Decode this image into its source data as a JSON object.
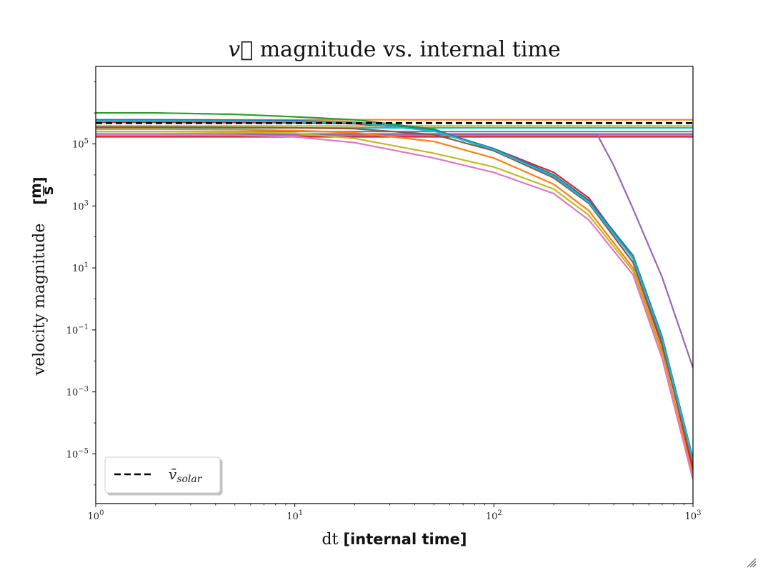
{
  "chart_data": {
    "type": "line",
    "title": "v⃗ magnitude vs. internal time",
    "title_parts": {
      "vec": "v⃗",
      "rest": " magnitude vs. internal time"
    },
    "xlabel": "dt [internal time]",
    "xlabel_parts": {
      "plain": "dt ",
      "bold": "[internal time]"
    },
    "ylabel": "velocity magnitude [m/s]",
    "ylabel_parts": {
      "plain": "velocity magnitude",
      "unit_num": "m",
      "unit_den": "s"
    },
    "xscale": "log",
    "yscale": "log",
    "xlim": [
      1,
      1000
    ],
    "ylim": [
      2.5e-07,
      31600000.0
    ],
    "grid": false,
    "legend_placement": "lower-left",
    "xticks": [
      {
        "value": 1,
        "base": "10",
        "exp": "0"
      },
      {
        "value": 10,
        "base": "10",
        "exp": "1"
      },
      {
        "value": 100,
        "base": "10",
        "exp": "2"
      },
      {
        "value": 1000,
        "base": "10",
        "exp": "3"
      }
    ],
    "yticks": [
      {
        "value": 100000.0,
        "base": "10",
        "exp": "5"
      },
      {
        "value": 1000.0,
        "base": "10",
        "exp": "3"
      },
      {
        "value": 10,
        "base": "10",
        "exp": "1"
      },
      {
        "value": 0.1,
        "base": "10",
        "exp": "−1"
      },
      {
        "value": 0.001,
        "base": "10",
        "exp": "−3"
      },
      {
        "value": 1e-05,
        "base": "10",
        "exp": "−5"
      }
    ],
    "reference_line": {
      "legend_label": "v̄solar",
      "legend_parts": {
        "base": "v̄",
        "sub": "solar"
      },
      "value": 470000,
      "color": "#000000",
      "style": "dashed"
    },
    "series": [
      {
        "color": "#d62728",
        "x": [
          1,
          1000
        ],
        "y": [
          170000,
          170000
        ]
      },
      {
        "color": "#e377c2",
        "x": [
          1,
          1000
        ],
        "y": [
          190000,
          190000
        ]
      },
      {
        "color": "#9467bd",
        "x": [
          1,
          1000
        ],
        "y": [
          210000,
          210000
        ]
      },
      {
        "color": "#7f7f7f",
        "x": [
          1,
          1000
        ],
        "y": [
          250000,
          250000
        ]
      },
      {
        "color": "#17becf",
        "x": [
          1,
          1000
        ],
        "y": [
          330000,
          330000
        ]
      },
      {
        "color": "#bcbd22",
        "x": [
          1,
          1000
        ],
        "y": [
          380000,
          380000
        ]
      },
      {
        "color": "#ff7f0e",
        "x": [
          1,
          1000
        ],
        "y": [
          600000,
          600000
        ]
      },
      {
        "color": "#9467bd",
        "x": [
          1,
          330,
          350,
          400,
          500,
          700,
          1000
        ],
        "y": [
          200000,
          200000,
          100000,
          20000,
          800,
          5,
          0.006
        ]
      },
      {
        "color": "#2ca02c",
        "x": [
          1,
          2,
          5,
          10,
          20,
          50,
          100,
          200,
          300,
          500,
          700,
          1000
        ],
        "y": [
          1000000,
          1000000,
          900000,
          750000,
          600000,
          300000,
          60000,
          9000,
          1500,
          20,
          0.05,
          4e-06
        ]
      },
      {
        "color": "#d62728",
        "x": [
          1,
          2,
          5,
          10,
          20,
          50,
          100,
          200,
          300,
          500,
          700,
          1000
        ],
        "y": [
          500000,
          500000,
          490000,
          480000,
          450000,
          280000,
          70000,
          12000,
          1800,
          20,
          0.04,
          3e-06
        ]
      },
      {
        "color": "#8c564b",
        "x": [
          1,
          2,
          5,
          10,
          20,
          50,
          100,
          200,
          300,
          500,
          700,
          1000
        ],
        "y": [
          350000,
          350000,
          340000,
          330000,
          310000,
          200000,
          60000,
          8000,
          1200,
          15,
          0.03,
          5e-06
        ]
      },
      {
        "color": "#ff7f0e",
        "x": [
          1,
          2,
          5,
          10,
          20,
          50,
          100,
          200,
          300,
          500,
          700,
          1000
        ],
        "y": [
          300000,
          300000,
          290000,
          270000,
          230000,
          120000,
          35000,
          5000,
          700,
          10,
          0.02,
          2e-06
        ]
      },
      {
        "color": "#bcbd22",
        "x": [
          1,
          2,
          5,
          10,
          20,
          50,
          100,
          200,
          300,
          500,
          700,
          1000
        ],
        "y": [
          250000,
          250000,
          240000,
          220000,
          150000,
          50000,
          18000,
          3500,
          500,
          8,
          0.015,
          1.5e-06
        ]
      },
      {
        "color": "#e377c2",
        "x": [
          1,
          2,
          5,
          10,
          20,
          50,
          100,
          200,
          300,
          500,
          700,
          1000
        ],
        "y": [
          200000,
          200000,
          190000,
          170000,
          110000,
          35000,
          12000,
          2500,
          350,
          6,
          0.012,
          1.5e-06
        ]
      },
      {
        "color": "#1f77b4",
        "x": [
          1,
          2,
          5,
          10,
          20,
          50,
          100,
          200,
          300,
          500,
          700,
          1000
        ],
        "y": [
          600000,
          600000,
          580000,
          560000,
          500000,
          280000,
          70000,
          10000,
          1500,
          25,
          0.06,
          7e-06
        ]
      },
      {
        "color": "#17becf",
        "x": [
          1,
          2,
          5,
          10,
          20,
          50,
          100,
          200,
          300,
          500,
          700,
          1000
        ],
        "y": [
          550000,
          550000,
          540000,
          520000,
          480000,
          260000,
          65000,
          9000,
          1300,
          20,
          0.05,
          6e-06
        ]
      }
    ]
  }
}
